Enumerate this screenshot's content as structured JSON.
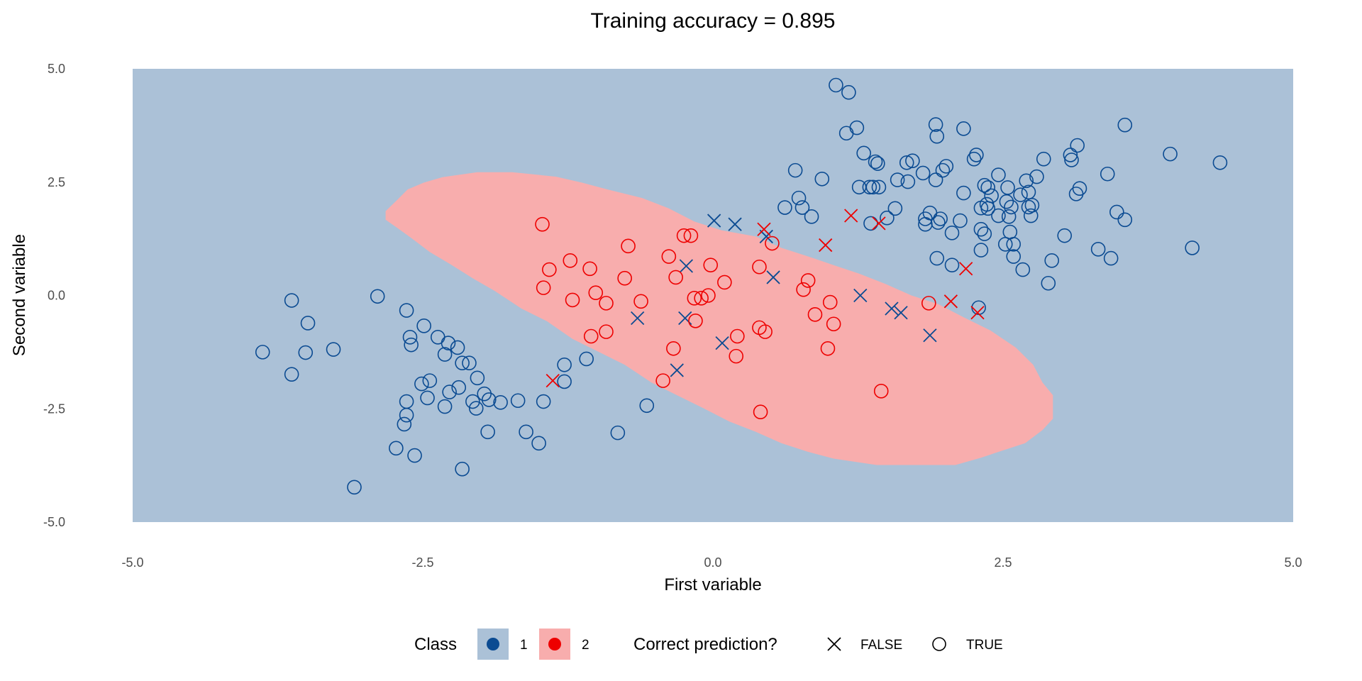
{
  "chart_data": {
    "type": "scatter",
    "title": "Training accuracy = 0.895",
    "xlabel": "First variable",
    "ylabel": "Second variable",
    "xlim": [
      -5,
      5
    ],
    "ylim": [
      -5,
      5
    ],
    "xticks": [
      -5.0,
      -2.5,
      0.0,
      2.5,
      5.0
    ],
    "xtick_labels": [
      "-5.0",
      "-2.5",
      "0.0",
      "2.5",
      "5.0"
    ],
    "yticks": [
      -5.0,
      -2.5,
      0.0,
      2.5,
      5.0
    ],
    "ytick_labels": [
      "-5.0",
      "-2.5",
      "0.0",
      "2.5",
      "5.0"
    ],
    "grid": false,
    "legend": {
      "placement": "bottom",
      "class_title": "Class",
      "class_labels": [
        "1",
        "2"
      ],
      "shape_title": "Correct prediction?",
      "shape_labels": [
        "FALSE",
        "TRUE"
      ]
    },
    "colors": {
      "region_1": "#abc1d7",
      "region_2": "#f8adad",
      "class_1": "#0b4b92",
      "class_2": "#ee0000"
    },
    "decision_region_class2": [
      [
        -2.82,
        1.86
      ],
      [
        -2.72,
        2.11
      ],
      [
        -2.63,
        2.34
      ],
      [
        -2.49,
        2.49
      ],
      [
        -2.33,
        2.61
      ],
      [
        -2.03,
        2.72
      ],
      [
        -1.73,
        2.72
      ],
      [
        -1.35,
        2.62
      ],
      [
        -1.13,
        2.49
      ],
      [
        -0.91,
        2.34
      ],
      [
        -0.61,
        2.15
      ],
      [
        -0.38,
        1.92
      ],
      [
        -0.16,
        1.63
      ],
      [
        0.07,
        1.44
      ],
      [
        0.37,
        1.3
      ],
      [
        0.59,
        1.05
      ],
      [
        0.82,
        0.86
      ],
      [
        1.04,
        0.67
      ],
      [
        1.26,
        0.48
      ],
      [
        1.49,
        0.25
      ],
      [
        1.71,
        0.0
      ],
      [
        1.94,
        -0.19
      ],
      [
        2.16,
        -0.48
      ],
      [
        2.39,
        -0.77
      ],
      [
        2.61,
        -1.15
      ],
      [
        2.76,
        -1.53
      ],
      [
        2.84,
        -1.92
      ],
      [
        2.93,
        -2.2
      ],
      [
        2.93,
        -2.72
      ],
      [
        2.84,
        -2.97
      ],
      [
        2.69,
        -3.26
      ],
      [
        2.46,
        -3.45
      ],
      [
        2.31,
        -3.58
      ],
      [
        2.09,
        -3.74
      ],
      [
        1.41,
        -3.74
      ],
      [
        1.04,
        -3.6
      ],
      [
        0.82,
        -3.45
      ],
      [
        0.59,
        -3.26
      ],
      [
        0.37,
        -3.01
      ],
      [
        0.14,
        -2.78
      ],
      [
        -0.08,
        -2.49
      ],
      [
        -0.31,
        -2.2
      ],
      [
        -0.53,
        -1.92
      ],
      [
        -0.76,
        -1.53
      ],
      [
        -0.98,
        -1.25
      ],
      [
        -1.21,
        -0.96
      ],
      [
        -1.43,
        -0.57
      ],
      [
        -1.65,
        -0.29
      ],
      [
        -1.88,
        0.1
      ],
      [
        -2.07,
        0.38
      ],
      [
        -2.25,
        0.67
      ],
      [
        -2.44,
        0.96
      ],
      [
        -2.59,
        1.25
      ],
      [
        -2.72,
        1.49
      ],
      [
        -2.82,
        1.67
      ]
    ],
    "series": [
      {
        "name": "Class 1, correct (TRUE)",
        "class": "1",
        "correct": true,
        "points": [
          [
            1.06,
            4.64
          ],
          [
            1.17,
            4.48
          ],
          [
            1.15,
            3.58
          ],
          [
            1.24,
            3.7
          ],
          [
            1.3,
            3.14
          ],
          [
            1.4,
            2.95
          ],
          [
            1.42,
            2.91
          ],
          [
            1.72,
            2.97
          ],
          [
            1.67,
            2.93
          ],
          [
            1.81,
            2.7
          ],
          [
            1.92,
            3.77
          ],
          [
            1.93,
            3.51
          ],
          [
            2.16,
            3.68
          ],
          [
            2.27,
            3.1
          ],
          [
            2.25,
            3.01
          ],
          [
            2.85,
            3.01
          ],
          [
            3.08,
            3.1
          ],
          [
            3.09,
            2.99
          ],
          [
            3.14,
            3.31
          ],
          [
            3.55,
            3.76
          ],
          [
            3.94,
            3.12
          ],
          [
            4.37,
            2.93
          ],
          [
            0.71,
            2.76
          ],
          [
            0.94,
            2.57
          ],
          [
            1.59,
            2.55
          ],
          [
            1.68,
            2.51
          ],
          [
            1.92,
            2.55
          ],
          [
            1.98,
            2.76
          ],
          [
            2.01,
            2.85
          ],
          [
            2.46,
            2.66
          ],
          [
            2.16,
            2.26
          ],
          [
            2.34,
            2.43
          ],
          [
            2.37,
            2.38
          ],
          [
            2.4,
            2.2
          ],
          [
            2.36,
            2.01
          ],
          [
            2.54,
            2.38
          ],
          [
            2.7,
            2.53
          ],
          [
            2.79,
            2.62
          ],
          [
            2.72,
            2.28
          ],
          [
            2.53,
            2.07
          ],
          [
            2.57,
            1.95
          ],
          [
            2.72,
            1.95
          ],
          [
            2.55,
            1.74
          ],
          [
            2.31,
            1.93
          ],
          [
            2.37,
            1.92
          ],
          [
            2.65,
            2.22
          ],
          [
            3.16,
            2.36
          ],
          [
            3.13,
            2.24
          ],
          [
            3.4,
            2.68
          ],
          [
            1.26,
            2.39
          ],
          [
            1.35,
            2.39
          ],
          [
            1.38,
            2.39
          ],
          [
            1.43,
            2.39
          ],
          [
            0.74,
            2.15
          ],
          [
            0.77,
            1.94
          ],
          [
            0.85,
            1.74
          ],
          [
            0.62,
            1.94
          ],
          [
            1.5,
            1.71
          ],
          [
            1.57,
            1.92
          ],
          [
            1.83,
            1.69
          ],
          [
            1.83,
            1.57
          ],
          [
            1.87,
            1.82
          ],
          [
            1.94,
            1.61
          ],
          [
            1.96,
            1.69
          ],
          [
            2.13,
            1.65
          ],
          [
            2.46,
            1.76
          ],
          [
            2.74,
            1.76
          ],
          [
            2.75,
            1.99
          ],
          [
            1.36,
            1.59
          ],
          [
            2.06,
            1.38
          ],
          [
            2.31,
            1.46
          ],
          [
            2.34,
            1.36
          ],
          [
            2.52,
            1.13
          ],
          [
            2.56,
            1.4
          ],
          [
            2.59,
            1.13
          ],
          [
            2.59,
            0.86
          ],
          [
            3.03,
            1.32
          ],
          [
            3.48,
            1.84
          ],
          [
            3.55,
            1.67
          ],
          [
            4.13,
            1.05
          ],
          [
            3.32,
            1.02
          ],
          [
            3.43,
            0.82
          ],
          [
            2.92,
            0.77
          ],
          [
            1.93,
            0.82
          ],
          [
            2.06,
            0.67
          ],
          [
            2.31,
            1.0
          ],
          [
            2.67,
            0.57
          ],
          [
            2.89,
            0.27
          ],
          [
            2.29,
            -0.27
          ],
          [
            -3.88,
            -1.25
          ],
          [
            -3.63,
            -0.11
          ],
          [
            -3.63,
            -1.74
          ],
          [
            -3.51,
            -1.26
          ],
          [
            -3.49,
            -0.61
          ],
          [
            -3.27,
            -1.19
          ],
          [
            -2.89,
            -0.02
          ],
          [
            -2.64,
            -0.33
          ],
          [
            -2.61,
            -0.92
          ],
          [
            -2.6,
            -1.09
          ],
          [
            -2.49,
            -0.67
          ],
          [
            -2.37,
            -0.92
          ],
          [
            -2.28,
            -1.05
          ],
          [
            -2.2,
            -1.15
          ],
          [
            -2.31,
            -1.3
          ],
          [
            -2.16,
            -1.49
          ],
          [
            -2.1,
            -1.49
          ],
          [
            -2.03,
            -1.82
          ],
          [
            -2.51,
            -1.95
          ],
          [
            -2.44,
            -1.88
          ],
          [
            -2.46,
            -2.26
          ],
          [
            -2.64,
            -2.34
          ],
          [
            -2.64,
            -2.64
          ],
          [
            -2.66,
            -2.84
          ],
          [
            -2.31,
            -2.45
          ],
          [
            -2.27,
            -2.13
          ],
          [
            -2.19,
            -2.03
          ],
          [
            -2.07,
            -2.34
          ],
          [
            -2.04,
            -2.49
          ],
          [
            -1.97,
            -2.17
          ],
          [
            -1.93,
            -2.3
          ],
          [
            -1.83,
            -2.36
          ],
          [
            -1.68,
            -2.32
          ],
          [
            -1.46,
            -2.34
          ],
          [
            -1.28,
            -1.53
          ],
          [
            -1.09,
            -1.4
          ],
          [
            -1.28,
            -1.9
          ],
          [
            -1.94,
            -3.01
          ],
          [
            -1.61,
            -3.01
          ],
          [
            -1.5,
            -3.26
          ],
          [
            -2.73,
            -3.37
          ],
          [
            -2.57,
            -3.53
          ],
          [
            -2.16,
            -3.83
          ],
          [
            -3.09,
            -4.23
          ],
          [
            -0.82,
            -3.03
          ],
          [
            -0.57,
            -2.43
          ]
        ]
      },
      {
        "name": "Class 1, misclassified (FALSE)",
        "class": "1",
        "correct": false,
        "points": [
          [
            0.01,
            1.65
          ],
          [
            0.19,
            1.57
          ],
          [
            0.46,
            1.3
          ],
          [
            0.52,
            0.4
          ],
          [
            -0.23,
            0.65
          ],
          [
            -0.65,
            -0.5
          ],
          [
            -0.24,
            -0.5
          ],
          [
            0.08,
            -1.05
          ],
          [
            -0.31,
            -1.65
          ],
          [
            1.27,
            0.0
          ],
          [
            1.54,
            -0.29
          ],
          [
            1.62,
            -0.38
          ],
          [
            1.87,
            -0.88
          ]
        ]
      },
      {
        "name": "Class 2, correct (TRUE)",
        "class": "2",
        "correct": true,
        "points": [
          [
            -1.47,
            1.57
          ],
          [
            -1.41,
            0.57
          ],
          [
            -1.23,
            0.77
          ],
          [
            -1.06,
            0.59
          ],
          [
            -1.46,
            0.17
          ],
          [
            -1.21,
            -0.1
          ],
          [
            -1.01,
            0.06
          ],
          [
            -0.92,
            -0.17
          ],
          [
            -0.76,
            0.38
          ],
          [
            -0.73,
            1.09
          ],
          [
            -0.62,
            -0.13
          ],
          [
            -0.38,
            0.86
          ],
          [
            -0.32,
            0.4
          ],
          [
            -0.25,
            1.32
          ],
          [
            -0.19,
            1.32
          ],
          [
            -0.02,
            0.67
          ],
          [
            0.1,
            0.29
          ],
          [
            -0.16,
            -0.06
          ],
          [
            -0.1,
            -0.06
          ],
          [
            -0.04,
            0.0
          ],
          [
            -0.15,
            -0.56
          ],
          [
            0.4,
            0.63
          ],
          [
            0.51,
            1.15
          ],
          [
            0.82,
            0.33
          ],
          [
            0.78,
            0.13
          ],
          [
            1.01,
            -0.15
          ],
          [
            0.88,
            -0.42
          ],
          [
            1.04,
            -0.63
          ],
          [
            0.4,
            -0.71
          ],
          [
            0.45,
            -0.8
          ],
          [
            0.21,
            -0.9
          ],
          [
            -0.34,
            -1.17
          ],
          [
            0.99,
            -1.17
          ],
          [
            0.2,
            -1.34
          ],
          [
            -0.92,
            -0.8
          ],
          [
            -1.05,
            -0.9
          ],
          [
            -0.43,
            -1.88
          ],
          [
            1.45,
            -2.11
          ],
          [
            0.41,
            -2.57
          ],
          [
            1.86,
            -0.17
          ]
        ]
      },
      {
        "name": "Class 2, misclassified (FALSE)",
        "class": "2",
        "correct": false,
        "points": [
          [
            -1.38,
            -1.88
          ],
          [
            0.44,
            1.46
          ],
          [
            0.97,
            1.11
          ],
          [
            1.19,
            1.76
          ],
          [
            1.43,
            1.59
          ],
          [
            2.18,
            0.59
          ],
          [
            2.05,
            -0.13
          ],
          [
            2.28,
            -0.38
          ]
        ]
      }
    ]
  }
}
